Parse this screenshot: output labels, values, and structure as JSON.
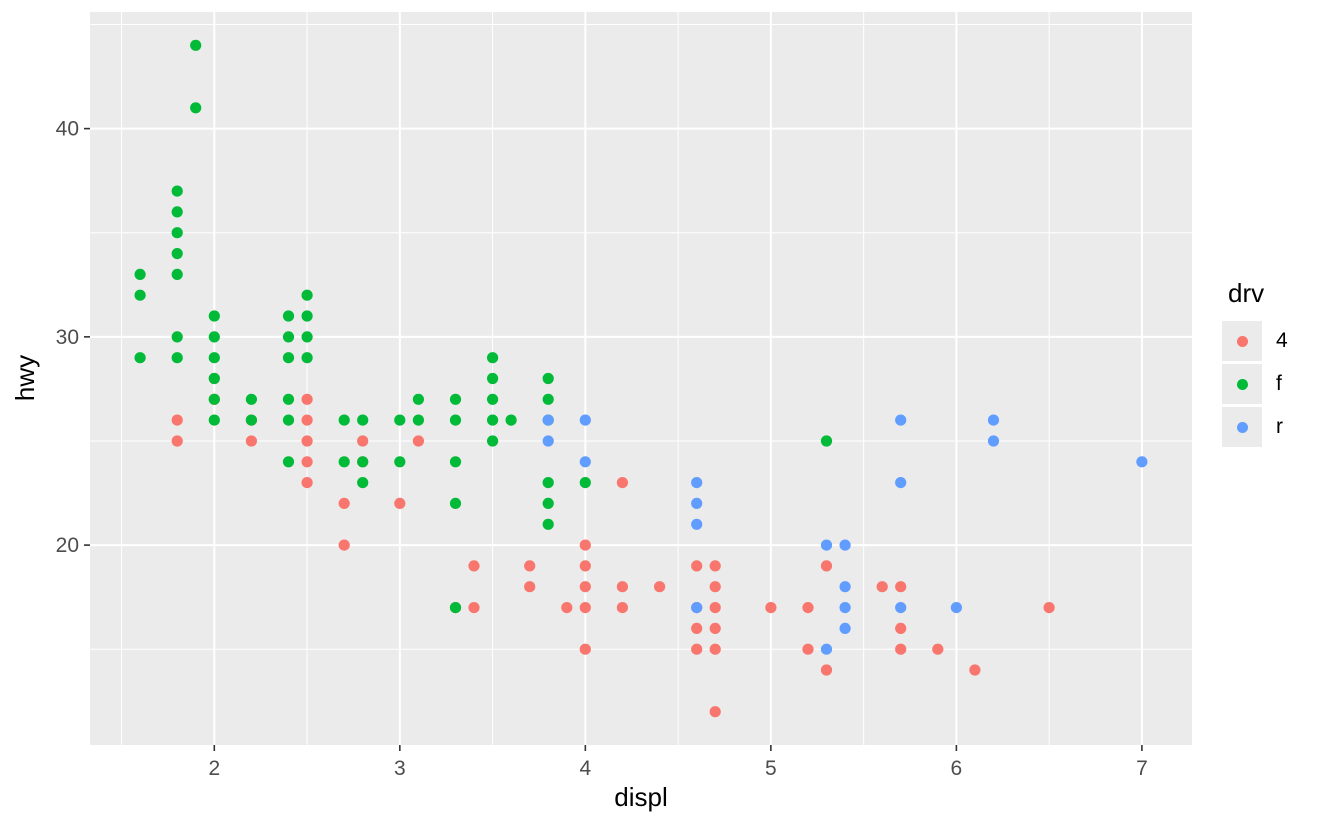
{
  "figure": {
    "background": "#FFFFFF",
    "panel_background": "#EBEBEB",
    "grid_color": "#FFFFFF",
    "tick_label_color": "#4D4D4D",
    "axis_title_color": "#000000"
  },
  "chart_data": {
    "type": "scatter",
    "title": "",
    "xlabel": "displ",
    "ylabel": "hwy",
    "xlim": [
      1.33,
      7.27
    ],
    "ylim": [
      10.4,
      45.6
    ],
    "x_ticks": [
      2,
      3,
      4,
      5,
      6,
      7
    ],
    "y_ticks": [
      20,
      30,
      40
    ],
    "x_minor": [
      1.5,
      2.5,
      3.5,
      4.5,
      5.5,
      6.5
    ],
    "y_minor": [
      15,
      25,
      35,
      45
    ],
    "grid": "on",
    "point_radius": 5.6,
    "legend": {
      "title": "drv",
      "position": "right"
    },
    "series": [
      {
        "name": "4",
        "color": "#F8766D",
        "points": [
          [
            1.8,
            25
          ],
          [
            1.8,
            26
          ],
          [
            2.0,
            27
          ],
          [
            2.0,
            28
          ],
          [
            2.2,
            25
          ],
          [
            2.2,
            26
          ],
          [
            2.5,
            23
          ],
          [
            2.5,
            24
          ],
          [
            2.5,
            25
          ],
          [
            2.5,
            26
          ],
          [
            2.5,
            27
          ],
          [
            2.7,
            20
          ],
          [
            2.7,
            22
          ],
          [
            2.8,
            24
          ],
          [
            2.8,
            25
          ],
          [
            3.0,
            22
          ],
          [
            3.1,
            25
          ],
          [
            3.3,
            17
          ],
          [
            3.4,
            17
          ],
          [
            3.4,
            19
          ],
          [
            3.7,
            18
          ],
          [
            3.7,
            19
          ],
          [
            3.9,
            17
          ],
          [
            4.0,
            15
          ],
          [
            4.0,
            17
          ],
          [
            4.0,
            18
          ],
          [
            4.0,
            19
          ],
          [
            4.0,
            20
          ],
          [
            4.2,
            17
          ],
          [
            4.2,
            18
          ],
          [
            4.2,
            23
          ],
          [
            4.4,
            18
          ],
          [
            4.6,
            15
          ],
          [
            4.6,
            16
          ],
          [
            4.6,
            17
          ],
          [
            4.6,
            19
          ],
          [
            4.7,
            12
          ],
          [
            4.7,
            15
          ],
          [
            4.7,
            16
          ],
          [
            4.7,
            17
          ],
          [
            4.7,
            18
          ],
          [
            4.7,
            19
          ],
          [
            5.0,
            17
          ],
          [
            5.2,
            15
          ],
          [
            5.2,
            17
          ],
          [
            5.3,
            14
          ],
          [
            5.3,
            19
          ],
          [
            5.6,
            18
          ],
          [
            5.7,
            15
          ],
          [
            5.7,
            16
          ],
          [
            5.7,
            18
          ],
          [
            5.9,
            15
          ],
          [
            6.1,
            14
          ],
          [
            6.5,
            17
          ]
        ]
      },
      {
        "name": "f",
        "color": "#00BA38",
        "points": [
          [
            1.6,
            29
          ],
          [
            1.6,
            32
          ],
          [
            1.6,
            33
          ],
          [
            1.8,
            29
          ],
          [
            1.8,
            30
          ],
          [
            1.8,
            33
          ],
          [
            1.8,
            34
          ],
          [
            1.8,
            35
          ],
          [
            1.8,
            36
          ],
          [
            1.8,
            37
          ],
          [
            1.9,
            41
          ],
          [
            1.9,
            44
          ],
          [
            2.0,
            26
          ],
          [
            2.0,
            27
          ],
          [
            2.0,
            28
          ],
          [
            2.0,
            29
          ],
          [
            2.0,
            30
          ],
          [
            2.0,
            31
          ],
          [
            2.2,
            26
          ],
          [
            2.2,
            27
          ],
          [
            2.4,
            24
          ],
          [
            2.4,
            26
          ],
          [
            2.4,
            27
          ],
          [
            2.4,
            29
          ],
          [
            2.4,
            30
          ],
          [
            2.4,
            31
          ],
          [
            2.5,
            29
          ],
          [
            2.5,
            30
          ],
          [
            2.5,
            31
          ],
          [
            2.5,
            32
          ],
          [
            2.7,
            24
          ],
          [
            2.7,
            26
          ],
          [
            2.8,
            23
          ],
          [
            2.8,
            24
          ],
          [
            2.8,
            26
          ],
          [
            3.0,
            24
          ],
          [
            3.0,
            26
          ],
          [
            3.1,
            26
          ],
          [
            3.1,
            27
          ],
          [
            3.3,
            17
          ],
          [
            3.3,
            22
          ],
          [
            3.3,
            24
          ],
          [
            3.3,
            26
          ],
          [
            3.3,
            27
          ],
          [
            3.5,
            25
          ],
          [
            3.5,
            26
          ],
          [
            3.5,
            27
          ],
          [
            3.5,
            28
          ],
          [
            3.5,
            29
          ],
          [
            3.6,
            26
          ],
          [
            3.8,
            21
          ],
          [
            3.8,
            22
          ],
          [
            3.8,
            23
          ],
          [
            3.8,
            26
          ],
          [
            3.8,
            27
          ],
          [
            3.8,
            28
          ],
          [
            4.0,
            23
          ],
          [
            5.3,
            25
          ]
        ]
      },
      {
        "name": "r",
        "color": "#619CFF",
        "points": [
          [
            3.8,
            25
          ],
          [
            3.8,
            26
          ],
          [
            4.0,
            24
          ],
          [
            4.0,
            26
          ],
          [
            4.6,
            17
          ],
          [
            4.6,
            21
          ],
          [
            4.6,
            22
          ],
          [
            4.6,
            23
          ],
          [
            5.3,
            15
          ],
          [
            5.3,
            20
          ],
          [
            5.4,
            16
          ],
          [
            5.4,
            17
          ],
          [
            5.4,
            18
          ],
          [
            5.4,
            20
          ],
          [
            5.7,
            17
          ],
          [
            5.7,
            23
          ],
          [
            5.7,
            26
          ],
          [
            6.0,
            17
          ],
          [
            6.2,
            25
          ],
          [
            6.2,
            26
          ],
          [
            7.0,
            24
          ]
        ]
      }
    ]
  }
}
